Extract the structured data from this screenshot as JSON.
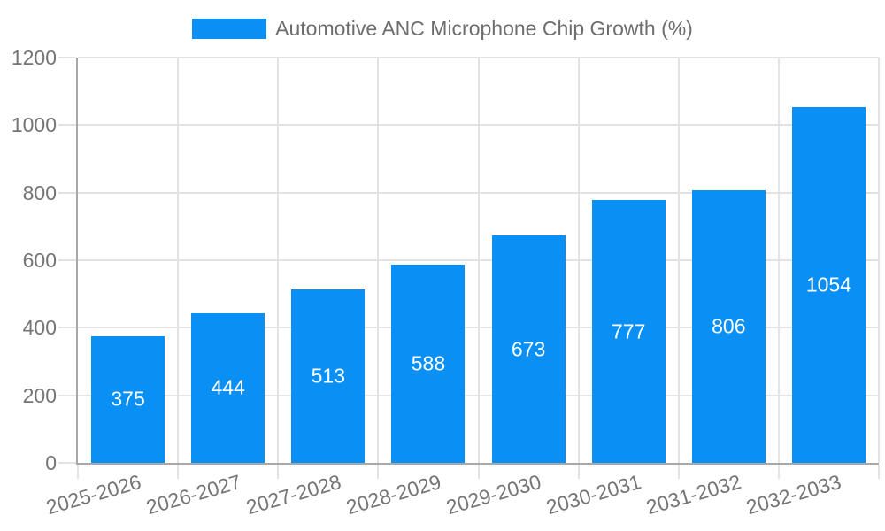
{
  "legend": {
    "label": "Automotive ANC Microphone Chip Growth (%)"
  },
  "colors": {
    "bar": "#0a90f5",
    "axis": "#a8a8a8",
    "grid": "#e3e3e3",
    "tick_text": "#757575",
    "legend_text": "#6e6e6e",
    "value_text": "#ffffff",
    "background": "#ffffff"
  },
  "chart_data": {
    "type": "bar",
    "title": "Automotive ANC Microphone Chip Growth (%)",
    "categories": [
      "2025-2026",
      "2026-2027",
      "2027-2028",
      "2028-2029",
      "2029-2030",
      "2030-2031",
      "2031-2032",
      "2032-2033"
    ],
    "values": [
      375,
      444,
      513,
      588,
      673,
      777,
      806,
      1054
    ],
    "xlabel": "",
    "ylabel": "",
    "ylim": [
      0,
      1200
    ],
    "yticks": [
      0,
      200,
      400,
      600,
      800,
      1000,
      1200
    ],
    "grid": true,
    "legend_position": "top-center",
    "value_labels": "inside-center",
    "x_tick_rotation_deg": 16
  }
}
